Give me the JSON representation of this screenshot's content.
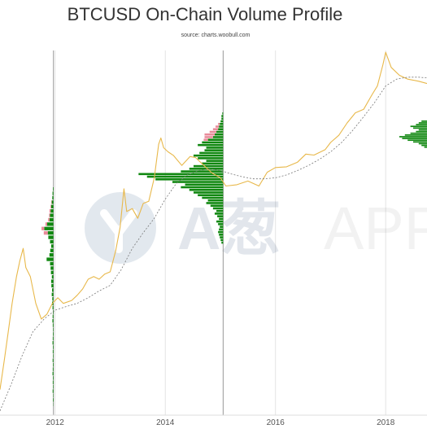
{
  "chart_data": {
    "type": "line",
    "title": "BTCUSD On-Chain Volume Profile",
    "subtitle": "source: charts.woobull.com",
    "xlabel": "",
    "ylabel": "",
    "x_ticks": [
      "2012",
      "2014",
      "2016",
      "2018"
    ],
    "y_scale": "log",
    "grid": "vertical",
    "watermark": {
      "text_cn": "A葱",
      "text_en": "APP"
    },
    "colors": {
      "price": "#e8b84a",
      "average": "#777777",
      "volume_profile": "#118811",
      "volume_high": "#e88b9a",
      "cycle_line": "#999999",
      "grid": "#e3e3e3"
    },
    "cycle_lines": [
      2011.97,
      2015.05
    ],
    "series": [
      {
        "style": "solid",
        "x": [
          2011.0,
          2011.08,
          2011.15,
          2011.22,
          2011.3,
          2011.36,
          2011.42,
          2011.47,
          2011.55,
          2011.65,
          2011.75,
          2011.85,
          2011.95,
          2012.05,
          2012.15,
          2012.3,
          2012.4,
          2012.5,
          2012.6,
          2012.7,
          2012.8,
          2012.9,
          2013.0,
          2013.1,
          2013.18,
          2013.25,
          2013.3,
          2013.4,
          2013.5,
          2013.6,
          2013.7,
          2013.8,
          2013.88,
          2013.92,
          2013.97,
          2014.05,
          2014.15,
          2014.3,
          2014.45,
          2014.55,
          2014.7,
          2014.85,
          2015.0,
          2015.1,
          2015.3,
          2015.5,
          2015.7,
          2015.85,
          2016.0,
          2016.2,
          2016.4,
          2016.55,
          2016.7,
          2016.9,
          2017.0,
          2017.15,
          2017.3,
          2017.45,
          2017.6,
          2017.75,
          2017.85,
          2017.95,
          2018.0,
          2018.1,
          2018.25,
          2018.4,
          2018.6,
          2018.75
        ],
        "y": [
          0.3,
          0.8,
          2,
          5,
          12,
          20,
          30,
          16,
          12,
          5,
          3,
          3.5,
          5,
          6,
          5,
          5.5,
          6.5,
          8,
          11,
          12,
          11,
          13,
          14,
          28,
          60,
          210,
          100,
          110,
          80,
          130,
          140,
          300,
          900,
          1100,
          800,
          700,
          620,
          450,
          600,
          580,
          450,
          350,
          300,
          230,
          240,
          270,
          230,
          360,
          420,
          430,
          500,
          650,
          630,
          750,
          950,
          1200,
          1800,
          2500,
          2800,
          4500,
          6000,
          12000,
          18000,
          11000,
          8500,
          7500,
          7000,
          6500
        ]
      },
      {
        "style": "dashed",
        "x": [
          2011.0,
          2011.2,
          2011.4,
          2011.6,
          2011.8,
          2012.0,
          2012.2,
          2012.4,
          2012.6,
          2012.8,
          2013.0,
          2013.2,
          2013.4,
          2013.6,
          2013.8,
          2014.0,
          2014.2,
          2014.4,
          2014.6,
          2014.8,
          2015.0,
          2015.2,
          2015.4,
          2015.6,
          2015.8,
          2016.0,
          2016.2,
          2016.4,
          2016.6,
          2016.8,
          2017.0,
          2017.2,
          2017.4,
          2017.6,
          2017.8,
          2018.0,
          2018.2,
          2018.4,
          2018.6,
          2018.75
        ],
        "y": [
          0.15,
          0.35,
          0.9,
          2,
          3,
          4,
          4.5,
          5,
          6,
          7.5,
          9,
          15,
          30,
          50,
          80,
          150,
          250,
          330,
          380,
          400,
          380,
          340,
          310,
          290,
          290,
          300,
          330,
          380,
          450,
          550,
          700,
          950,
          1400,
          2200,
          3500,
          6000,
          7500,
          8000,
          8000,
          7800
        ]
      }
    ],
    "volume_profiles": [
      {
        "anchor_x": 2011.97,
        "volume": [
          0.02,
          0.05,
          0.03,
          0.07,
          0.04,
          0.06,
          0.05,
          0.08,
          0.06,
          0.05,
          0.07,
          0.04,
          0.06,
          0.05,
          0.08,
          0.06,
          0.05,
          0.04,
          0.06,
          0.09,
          0.07,
          0.05,
          0.08,
          0.12,
          0.1,
          0.15,
          0.12,
          0.18,
          0.2,
          0.14,
          0.22,
          0.25,
          0.3,
          0.6,
          0.35,
          0.28,
          0.2,
          0.3,
          0.45,
          0.5,
          0.8,
          0.55,
          0.35,
          0.3,
          0.25,
          0.2,
          0.15,
          0.1,
          0.08,
          0.05
        ],
        "pink": [
          0,
          0,
          0,
          0,
          0,
          0,
          0,
          0,
          0,
          0,
          0,
          0,
          0,
          0,
          0,
          0,
          0,
          0,
          0,
          0,
          0,
          0,
          0,
          0,
          0,
          0,
          0,
          0,
          0,
          0,
          0,
          0,
          0,
          0,
          0,
          0,
          0,
          0,
          0,
          0.35,
          0.25,
          0.15,
          0.12,
          0.08,
          0.1,
          0.06,
          0.04,
          0,
          0,
          0
        ]
      },
      {
        "anchor_x": 2015.05,
        "volume": [
          0.02,
          0.03,
          0.04,
          0.05,
          0.06,
          0.05,
          0.04,
          0.06,
          0.08,
          0.05,
          0.07,
          0.1,
          0.08,
          0.12,
          0.15,
          0.2,
          0.18,
          0.25,
          0.3,
          0.35,
          0.4,
          0.5,
          0.45,
          0.6,
          0.8,
          0.9,
          1.0,
          0.5,
          0.4,
          0.35,
          0.25,
          0.2,
          0.3,
          0.35,
          0.28,
          0.22,
          0.2,
          0.3,
          0.25,
          0.18,
          0.12,
          0.1,
          0.08,
          0.06,
          0.05,
          0.04,
          0.03,
          0.02,
          0.02,
          0.01
        ],
        "pink": [
          0,
          0,
          0,
          0,
          0,
          0,
          0,
          0,
          0,
          0,
          0,
          0,
          0,
          0,
          0,
          0,
          0,
          0,
          0,
          0,
          0,
          0,
          0,
          0,
          0,
          0,
          0,
          0,
          0,
          0,
          0,
          0,
          0,
          0,
          0,
          0,
          0,
          0,
          0,
          0.05,
          0.1,
          0.12,
          0.08,
          0.06,
          0.04,
          0.02,
          0,
          0,
          0,
          0
        ]
      },
      {
        "anchor_x": 2018.75,
        "volume": [
          0.1,
          0.2,
          0.3,
          0.5,
          0.7,
          0.9,
          1.0,
          0.8,
          0.6,
          0.4,
          0.3,
          0.5,
          0.6,
          0.4,
          0.3,
          0.2
        ],
        "pink": []
      }
    ]
  }
}
